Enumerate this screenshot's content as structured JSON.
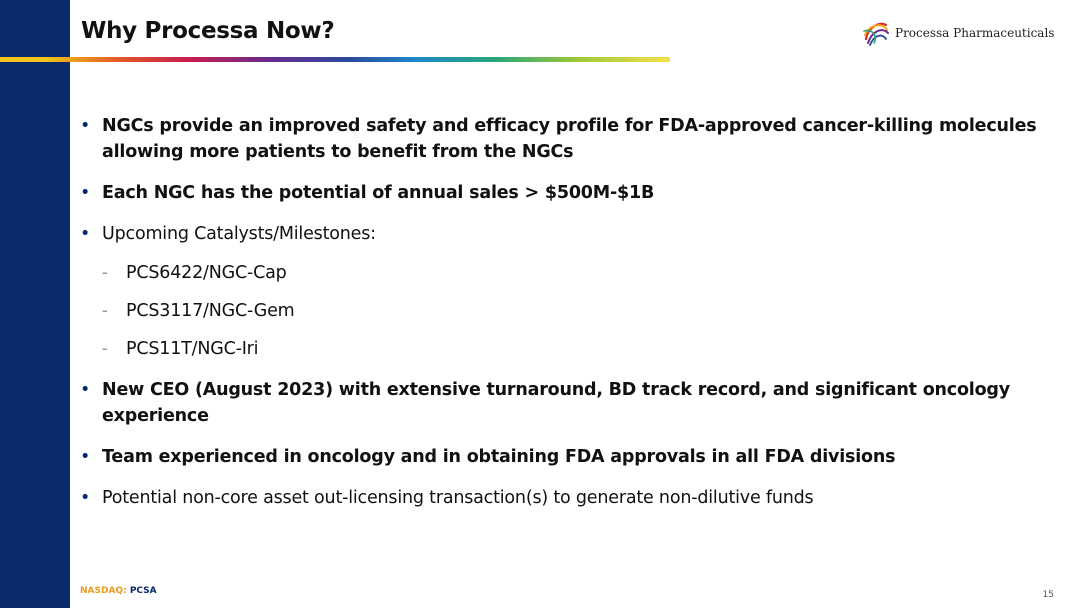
{
  "slide": {
    "title": "Why Processa Now?",
    "logo_text": "Processa Pharmaceuticals",
    "page_number": "15"
  },
  "bullets": [
    {
      "text": "NGCs provide an improved safety and efficacy profile for FDA-approved cancer-killing molecules allowing more patients to benefit from the NGCs",
      "bold": true
    },
    {
      "text": "Each NGC has the potential of annual sales > $500M-$1B",
      "bold": true
    },
    {
      "text": "Upcoming Catalysts/Milestones:",
      "bold": false
    },
    {
      "text": "New CEO (August 2023) with extensive turnaround, BD track record, and significant oncology experience",
      "bold": true
    },
    {
      "text": "Team experienced in oncology and in obtaining FDA approvals in all FDA divisions",
      "bold": true
    },
    {
      "text": "Potential non-core asset out-licensing transaction(s) to generate non-dilutive funds",
      "bold": false
    }
  ],
  "milestones": [
    "PCS6422/NGC-Cap",
    "PCS3117/NGC-Gem",
    "PCS11T/NGC-Iri"
  ],
  "footer": {
    "ticker_prefix": "NASDAQ:",
    "ticker_symbol": "PCSA"
  },
  "colors": {
    "sidebar": "#0a2a6e",
    "ticker_orange": "#e89b1e"
  },
  "icons": {
    "logo": "processa-swirl-logo-icon",
    "bullet": "bullet-dot-icon",
    "dash": "dash-icon"
  }
}
